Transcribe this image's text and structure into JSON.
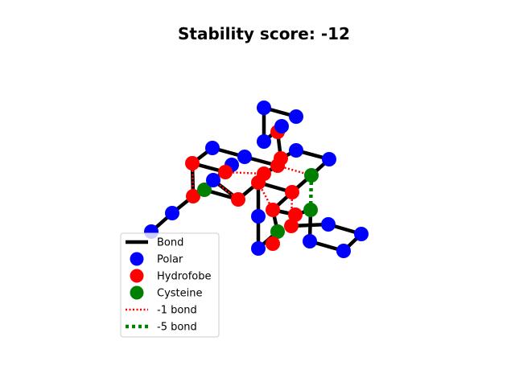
{
  "title": "Stability score: -12",
  "legend": {
    "placement": "lower-left",
    "entries": [
      {
        "label": "Bond",
        "kind": "line",
        "style": "solid",
        "color": "#000000"
      },
      {
        "label": "Polar",
        "kind": "marker",
        "color": "#0000ff"
      },
      {
        "label": "Hydrofobe",
        "kind": "marker",
        "color": "#ff0000"
      },
      {
        "label": "Cysteine",
        "kind": "marker",
        "color": "#008000"
      },
      {
        "label": "-1 bond",
        "kind": "line",
        "style": "dotted",
        "color": "#ff0000"
      },
      {
        "label": "-5 bond",
        "kind": "line",
        "style": "dotted-thick",
        "color": "#008000"
      }
    ]
  },
  "colors": {
    "polar": "#0000ff",
    "hydrofobe": "#ff0000",
    "cysteine": "#008000",
    "bond": "#000000"
  }
}
